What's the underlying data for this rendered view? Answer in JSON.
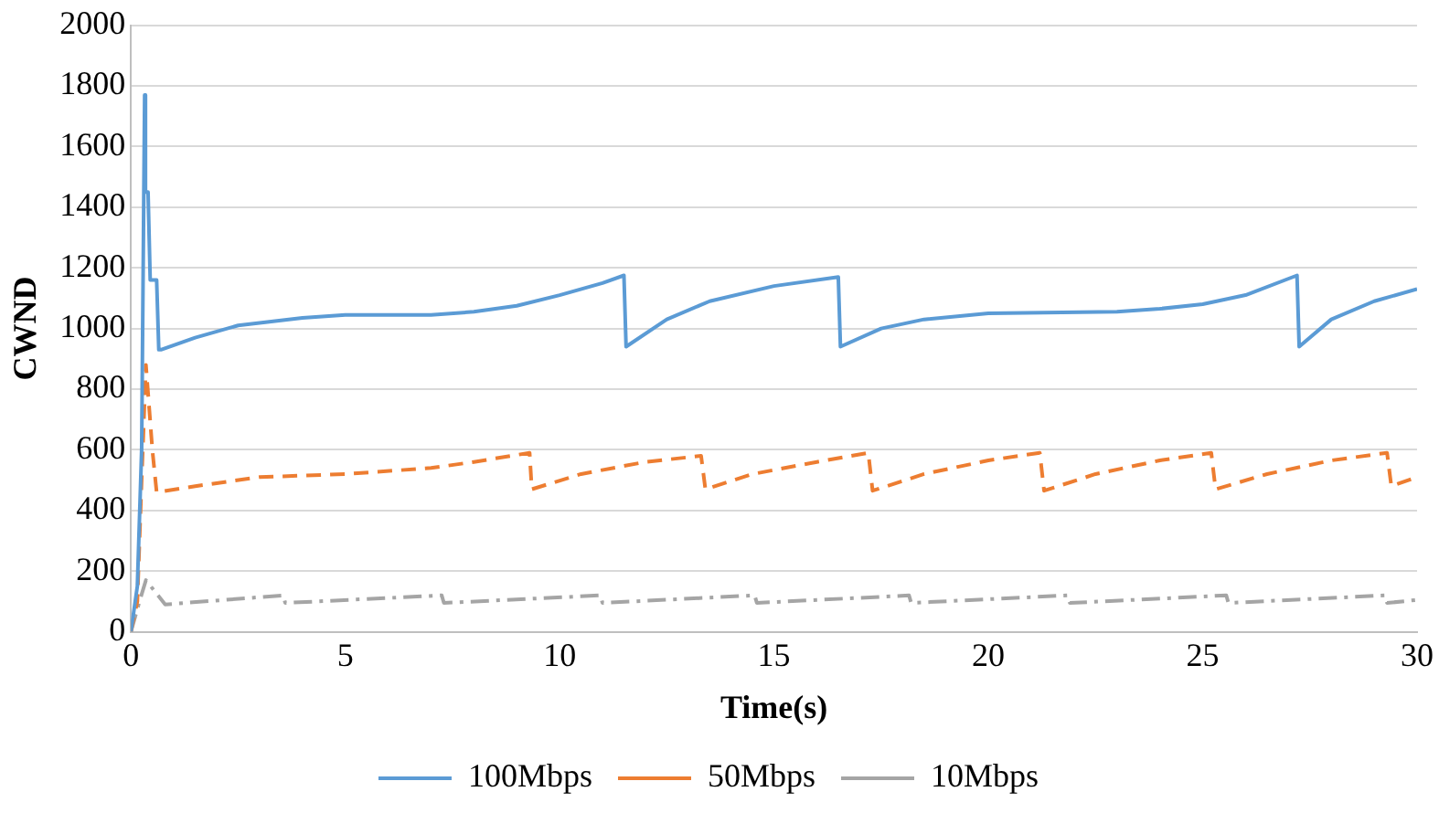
{
  "chart_data": {
    "type": "line",
    "xlabel": "Time(s)",
    "ylabel": "CWND",
    "xlim": [
      0,
      30
    ],
    "xticks": [
      0,
      5,
      10,
      15,
      20,
      25,
      30
    ],
    "ylim": [
      0,
      2000
    ],
    "yticks": [
      0,
      200,
      400,
      600,
      800,
      1000,
      1200,
      1400,
      1600,
      1800,
      2000
    ],
    "grid": "y",
    "legend": "bottom",
    "marker": "none",
    "series": [
      {
        "name": "100Mbps",
        "color": "#5b9bd5",
        "line_style": "solid",
        "x": [
          0,
          0.15,
          0.25,
          0.32,
          0.34,
          0.4,
          0.45,
          0.5,
          0.6,
          0.65,
          0.7,
          1.5,
          2.5,
          4,
          5,
          7,
          8,
          9,
          10,
          11,
          11.5,
          11.55,
          12.5,
          13.5,
          15,
          16.5,
          16.55,
          17.5,
          18.5,
          20,
          23,
          24,
          25,
          26,
          27.2,
          27.25,
          28,
          29,
          30
        ],
        "values": [
          0,
          150,
          600,
          1770,
          1450,
          1450,
          1160,
          1160,
          1160,
          930,
          930,
          970,
          1010,
          1035,
          1045,
          1045,
          1055,
          1075,
          1110,
          1150,
          1175,
          940,
          1030,
          1090,
          1140,
          1170,
          940,
          1000,
          1030,
          1050,
          1055,
          1065,
          1080,
          1110,
          1175,
          940,
          1030,
          1090,
          1130
        ]
      },
      {
        "name": "50Mbps",
        "color": "#ed7d31",
        "line_style": "dashed",
        "x": [
          0,
          0.15,
          0.25,
          0.35,
          0.5,
          0.6,
          1.5,
          3,
          5,
          7,
          8,
          9.3,
          9.35,
          10.5,
          12,
          13.3,
          13.4,
          14.5,
          16,
          17.2,
          17.3,
          18.5,
          20,
          21.2,
          21.3,
          22.5,
          24,
          25.2,
          25.3,
          26.5,
          28,
          29.3,
          29.4,
          30
        ],
        "values": [
          0,
          100,
          500,
          880,
          600,
          460,
          480,
          510,
          520,
          540,
          560,
          590,
          470,
          520,
          560,
          580,
          470,
          520,
          560,
          590,
          465,
          520,
          565,
          590,
          465,
          520,
          565,
          590,
          470,
          520,
          565,
          590,
          480,
          510
        ]
      },
      {
        "name": "10Mbps",
        "color": "#a5a5a5",
        "line_style": "dashdot",
        "x": [
          0,
          0.2,
          0.35,
          0.8,
          3.55,
          3.6,
          7.25,
          7.3,
          10.95,
          11,
          14.55,
          14.6,
          18.15,
          18.2,
          21.85,
          21.9,
          25.55,
          25.6,
          29.25,
          29.3,
          30
        ],
        "values": [
          0,
          100,
          170,
          90,
          120,
          95,
          120,
          95,
          120,
          95,
          120,
          95,
          120,
          95,
          120,
          95,
          120,
          95,
          120,
          95,
          105
        ]
      }
    ]
  }
}
